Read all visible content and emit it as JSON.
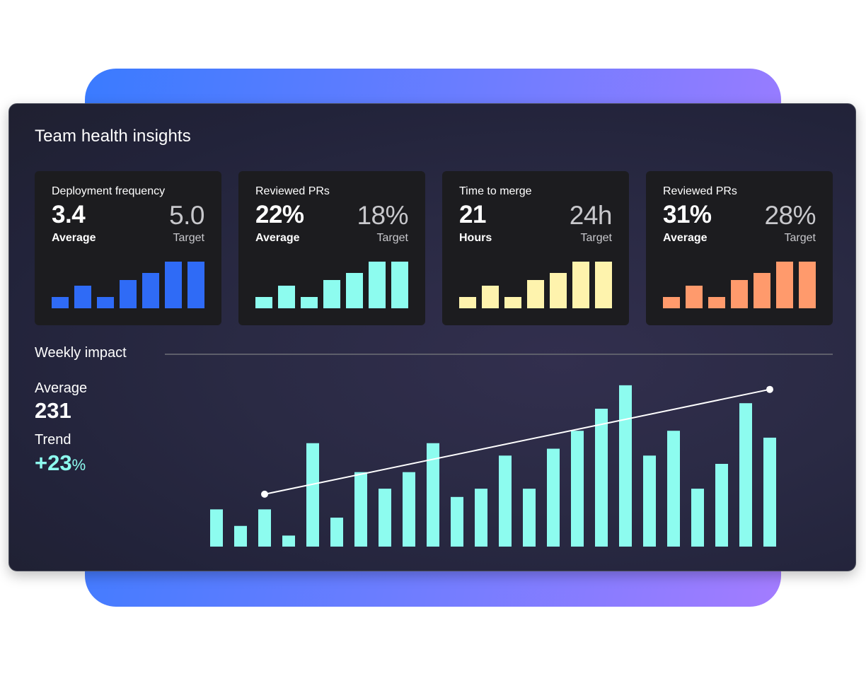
{
  "colors": {
    "blue": "#2f6bf6",
    "teal": "#8dfcef",
    "yellow": "#fef3ad",
    "orange": "#ff9a6c"
  },
  "header": {
    "title": "Team health insights"
  },
  "cards": [
    {
      "label": "Deployment frequency",
      "value": "3.4",
      "unit": "Average",
      "target": "5.0",
      "target_label": "Target",
      "color": "#2f6bf6",
      "bars": [
        16,
        32,
        16,
        40,
        50,
        66,
        66
      ]
    },
    {
      "label": "Reviewed PRs",
      "value": "22%",
      "unit": "Average",
      "target": "18%",
      "target_label": "Target",
      "color": "#8dfcef",
      "bars": [
        16,
        32,
        16,
        40,
        50,
        66,
        66
      ]
    },
    {
      "label": "Time to merge",
      "value": "21",
      "unit": "Hours",
      "target": "24h",
      "target_label": "Target",
      "color": "#fef3ad",
      "bars": [
        16,
        32,
        16,
        40,
        50,
        66,
        66
      ]
    },
    {
      "label": "Reviewed PRs",
      "value": "31%",
      "unit": "Average",
      "target": "28%",
      "target_label": "Target",
      "color": "#ff9a6c",
      "bars": [
        16,
        32,
        16,
        40,
        50,
        66,
        66
      ]
    }
  ],
  "weekly": {
    "title": "Weekly impact",
    "average_label": "Average",
    "average_value": "231",
    "trend_label": "Trend",
    "trend_value": "+23",
    "trend_unit": "%"
  },
  "chart_data": {
    "type": "bar",
    "title": "Weekly impact",
    "values": [
      54,
      30,
      54,
      16,
      150,
      42,
      108,
      84,
      108,
      150,
      72,
      84,
      132,
      84,
      142,
      168,
      200,
      234,
      132,
      168,
      84,
      120,
      208,
      158
    ],
    "trend_line": {
      "start_index": 2,
      "start_value": 76,
      "end_index": 23,
      "end_value": 228
    },
    "ylim": [
      0,
      240
    ],
    "grid": false
  }
}
